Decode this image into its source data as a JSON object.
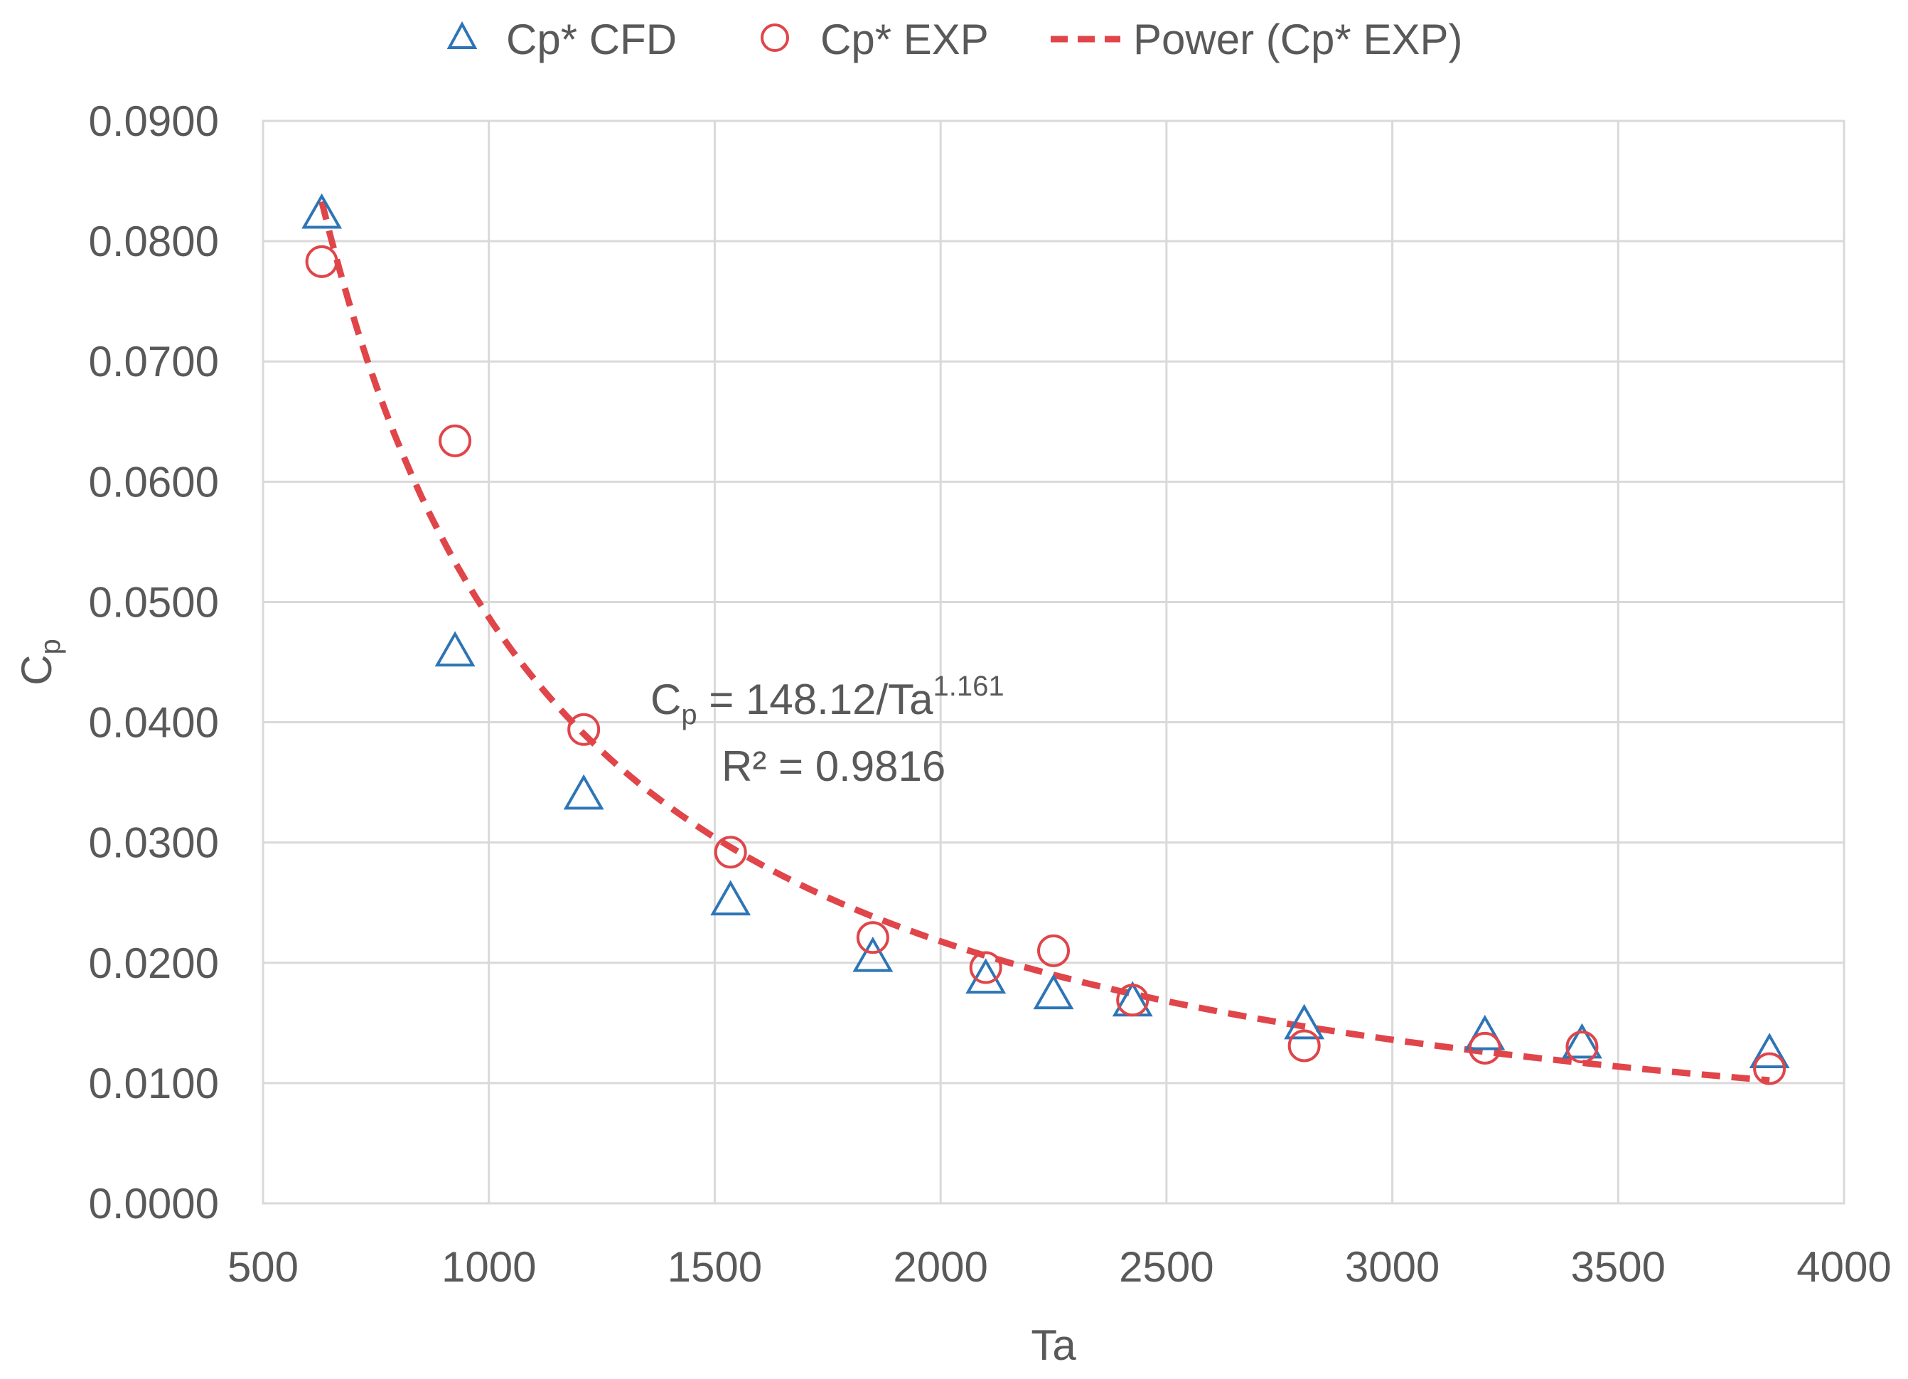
{
  "chart_data": {
    "type": "scatter",
    "title": "",
    "xlabel": "Ta",
    "ylabel": {
      "main": "C",
      "sub": "p"
    },
    "xlim": [
      500,
      4000
    ],
    "ylim": [
      0,
      0.09
    ],
    "xticks": [
      500,
      1000,
      1500,
      2000,
      2500,
      3000,
      3500,
      4000
    ],
    "xtick_labels": [
      "500",
      "1000",
      "1500",
      "2000",
      "2500",
      "3000",
      "3500",
      "4000"
    ],
    "yticks": [
      0,
      0.01,
      0.02,
      0.03,
      0.04,
      0.05,
      0.06,
      0.07,
      0.08,
      0.09
    ],
    "ytick_labels": [
      "0.0000",
      "0.0100",
      "0.0200",
      "0.0300",
      "0.0400",
      "0.0500",
      "0.0600",
      "0.0700",
      "0.0800",
      "0.0900"
    ],
    "grid": true,
    "legend_position": "top-center",
    "series": [
      {
        "name": "Cp* CFD",
        "marker": "triangle",
        "color": "#2E75B6",
        "x": [
          630,
          925,
          1210,
          1535,
          1850,
          2100,
          2250,
          2425,
          2805,
          3205,
          3420,
          3835
        ],
        "y": [
          0.0822,
          0.0458,
          0.0339,
          0.0251,
          0.0204,
          0.0186,
          0.0173,
          0.0167,
          0.0148,
          0.0139,
          0.0132,
          0.0124
        ]
      },
      {
        "name": "Cp* EXP",
        "marker": "circle",
        "color": "#E0454A",
        "x": [
          630,
          925,
          1210,
          1535,
          1850,
          2100,
          2250,
          2425,
          2805,
          3205,
          3420,
          3835
        ],
        "y": [
          0.0783,
          0.0634,
          0.0394,
          0.0292,
          0.0221,
          0.0196,
          0.021,
          0.0169,
          0.0131,
          0.0129,
          0.013,
          0.0112
        ]
      },
      {
        "name": "Power (Cp* EXP)",
        "marker": "dashed-line",
        "color": "#E0454A",
        "fit": {
          "coefficient": 148.12,
          "exponent": -1.161,
          "x_from": 630,
          "x_to": 3835
        }
      }
    ],
    "annotation": {
      "equation_lhs_main": "C",
      "equation_lhs_sub": "p",
      "equation_rhs": " = 148.12/Ta",
      "equation_exponent": "1.161",
      "r_squared": "R² = 0.9816"
    }
  }
}
